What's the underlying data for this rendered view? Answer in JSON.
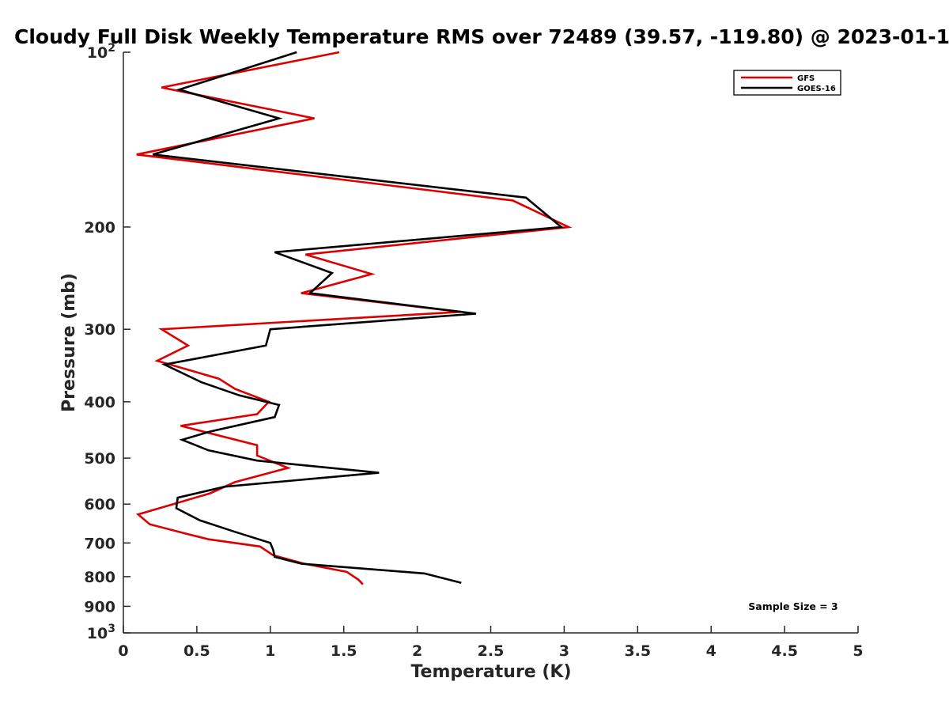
{
  "chart_data": {
    "type": "line",
    "title": "Cloudy Full Disk Weekly Temperature RMS over 72489 (39.57, -119.80) @ 2023-01-1",
    "xlabel": "Temperature (K)",
    "ylabel": "Pressure (mb)",
    "xlim": [
      0,
      5
    ],
    "ylim": [
      100,
      1000
    ],
    "y_scale": "log",
    "y_reversed": true,
    "x_ticks": [
      "0",
      "0.5",
      "1",
      "1.5",
      "2",
      "2.5",
      "3",
      "3.5",
      "4",
      "4.5",
      "5"
    ],
    "y_ticks": [
      {
        "value": 100,
        "base": "10",
        "exp": "2"
      },
      {
        "value": 200,
        "label": "200"
      },
      {
        "value": 300,
        "label": "300"
      },
      {
        "value": 400,
        "label": "400"
      },
      {
        "value": 500,
        "label": "500"
      },
      {
        "value": 600,
        "label": "600"
      },
      {
        "value": 700,
        "label": "700"
      },
      {
        "value": 800,
        "label": "800"
      },
      {
        "value": 900,
        "label": "900"
      },
      {
        "value": 1000,
        "base": "10",
        "exp": "3"
      }
    ],
    "grid": false,
    "legend_position": "top-right",
    "annotation": "Sample Size = 3",
    "series": [
      {
        "name": "GFS",
        "color": "#dd0000",
        "points": [
          [
            1.47,
            100
          ],
          [
            0.26,
            115
          ],
          [
            1.3,
            130
          ],
          [
            0.09,
            150
          ],
          [
            2.65,
            180
          ],
          [
            3.03,
            200
          ],
          [
            1.24,
            223
          ],
          [
            1.69,
            241
          ],
          [
            1.21,
            260
          ],
          [
            2.3,
            280
          ],
          [
            0.26,
            300
          ],
          [
            0.44,
            320
          ],
          [
            0.23,
            340
          ],
          [
            0.65,
            365
          ],
          [
            0.76,
            380
          ],
          [
            0.99,
            400
          ],
          [
            0.91,
            420
          ],
          [
            0.39,
            440
          ],
          [
            0.91,
            475
          ],
          [
            0.91,
            495
          ],
          [
            1.12,
            520
          ],
          [
            0.76,
            550
          ],
          [
            0.59,
            575
          ],
          [
            0.34,
            600
          ],
          [
            0.1,
            625
          ],
          [
            0.18,
            650
          ],
          [
            0.43,
            675
          ],
          [
            0.58,
            690
          ],
          [
            0.93,
            710
          ],
          [
            1.02,
            735
          ],
          [
            1.23,
            760
          ],
          [
            1.52,
            785
          ],
          [
            1.6,
            810
          ],
          [
            1.63,
            825
          ]
        ]
      },
      {
        "name": "GOES-16",
        "color": "#000000",
        "points": [
          [
            1.18,
            100
          ],
          [
            0.38,
            116
          ],
          [
            1.06,
            130
          ],
          [
            0.2,
            150
          ],
          [
            2.74,
            178
          ],
          [
            2.98,
            200
          ],
          [
            1.03,
            221
          ],
          [
            1.42,
            240
          ],
          [
            1.27,
            260
          ],
          [
            2.4,
            282
          ],
          [
            1.0,
            300
          ],
          [
            0.97,
            320
          ],
          [
            0.28,
            345
          ],
          [
            0.53,
            370
          ],
          [
            0.79,
            390
          ],
          [
            1.06,
            405
          ],
          [
            1.03,
            425
          ],
          [
            0.59,
            450
          ],
          [
            0.4,
            465
          ],
          [
            0.58,
            485
          ],
          [
            0.91,
            505
          ],
          [
            1.74,
            530
          ],
          [
            0.69,
            560
          ],
          [
            0.37,
            585
          ],
          [
            0.36,
            610
          ],
          [
            0.52,
            640
          ],
          [
            0.76,
            670
          ],
          [
            1.0,
            700
          ],
          [
            1.02,
            720
          ],
          [
            1.03,
            740
          ],
          [
            1.21,
            760
          ],
          [
            2.05,
            790
          ],
          [
            2.3,
            820
          ]
        ]
      }
    ]
  }
}
